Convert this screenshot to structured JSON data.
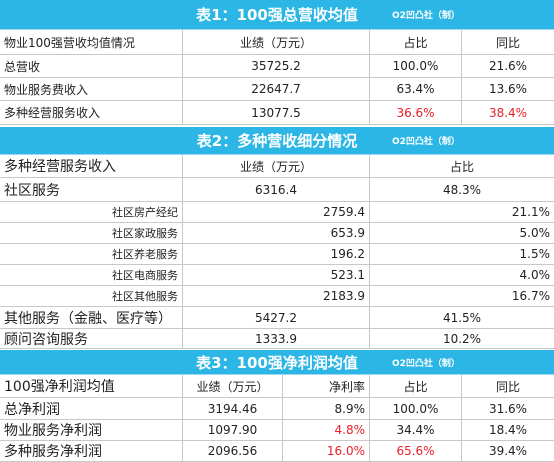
{
  "table1": {
    "title": "表1：100强总营收均值",
    "credit": "O2凹凸社（制）",
    "header": [
      "物业100强营收均值情况",
      "业绩（万元）",
      "占比",
      "同比"
    ],
    "rows": [
      [
        "总营收",
        "35725.2",
        "100.0%",
        "21.6%"
      ],
      [
        "物业服务费收入",
        "22647.7",
        "63.4%",
        "13.6%"
      ],
      [
        "多种经营服务收入",
        "13077.5",
        "36.6%",
        "38.4%"
      ]
    ]
  },
  "table2": {
    "title": "表2：多种营收细分情况",
    "credit": "O2凹凸社（制）",
    "header": [
      "多种经营服务收入",
      "业绩（万元）",
      "占比"
    ],
    "rows": [
      [
        "社区服务",
        "6316.4",
        "48.3%"
      ],
      [
        "社区房产经纪",
        "2759.4",
        "21.1%"
      ],
      [
        "社区家政服务",
        "653.9",
        "5.0%"
      ],
      [
        "社区养老服务",
        "196.2",
        "1.5%"
      ],
      [
        "社区电商服务",
        "523.1",
        "4.0%"
      ],
      [
        "社区其他服务",
        "2183.9",
        "16.7%"
      ],
      [
        "其他服务（金融、医疗等）",
        "5427.2",
        "41.5%"
      ],
      [
        "顾问咨询服务",
        "1333.9",
        "10.2%"
      ]
    ]
  },
  "table3": {
    "title": "表3：100强净利润均值",
    "credit": "O2凹凸社（制）",
    "header": [
      "100强净利润均值",
      "业绩（万元）",
      "净利率",
      "占比",
      "同比"
    ],
    "rows": [
      [
        "总净利润",
        "3194.46",
        "8.9%",
        "100.0%",
        "31.6%"
      ],
      [
        "物业服务净利润",
        "1097.90",
        "4.8%",
        "34.4%",
        "18.4%"
      ],
      [
        "多种服务净利润",
        "2096.56",
        "16.0%",
        "65.6%",
        "39.4%"
      ]
    ]
  }
}
